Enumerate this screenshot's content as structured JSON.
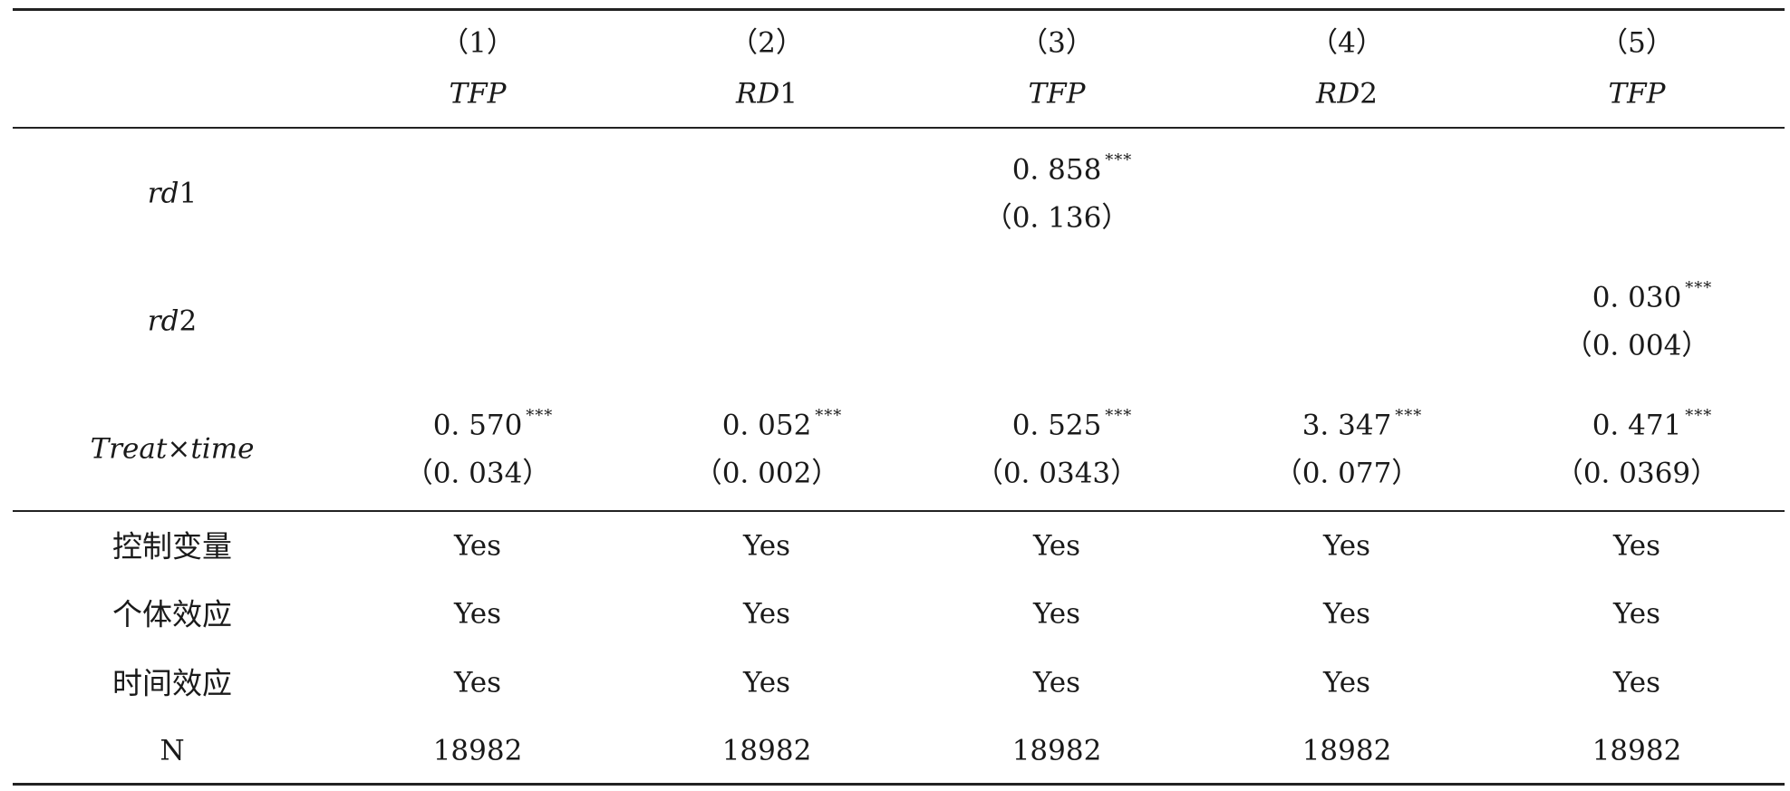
{
  "table": {
    "columns": [
      {
        "number": "（1）",
        "variable": "TFP",
        "var_suffix": ""
      },
      {
        "number": "（2）",
        "variable": "RD",
        "var_suffix": "1"
      },
      {
        "number": "（3）",
        "variable": "TFP",
        "var_suffix": ""
      },
      {
        "number": "（4）",
        "variable": "RD",
        "var_suffix": "2"
      },
      {
        "number": "（5）",
        "variable": "TFP",
        "var_suffix": ""
      }
    ],
    "rows": {
      "rd1": {
        "label_italic": "rd",
        "label_suffix": "1",
        "cells": [
          {
            "coef": "",
            "stars": "",
            "se": ""
          },
          {
            "coef": "",
            "stars": "",
            "se": ""
          },
          {
            "coef": "0. 858",
            "stars": "***",
            "se": "（0. 136）"
          },
          {
            "coef": "",
            "stars": "",
            "se": ""
          },
          {
            "coef": "",
            "stars": "",
            "se": ""
          }
        ]
      },
      "rd2": {
        "label_italic": "rd",
        "label_suffix": "2",
        "cells": [
          {
            "coef": "",
            "stars": "",
            "se": ""
          },
          {
            "coef": "",
            "stars": "",
            "se": ""
          },
          {
            "coef": "",
            "stars": "",
            "se": ""
          },
          {
            "coef": "",
            "stars": "",
            "se": ""
          },
          {
            "coef": "0. 030",
            "stars": "***",
            "se": "（0. 004）"
          }
        ]
      },
      "treat_time": {
        "label": "Treat×time",
        "cells": [
          {
            "coef": "0. 570",
            "stars": "***",
            "se": "（0. 034）"
          },
          {
            "coef": "0. 052",
            "stars": "***",
            "se": "（0. 002）"
          },
          {
            "coef": "0. 525",
            "stars": "***",
            "se": "（0. 0343）"
          },
          {
            "coef": "3. 347",
            "stars": "***",
            "se": "（0. 077）"
          },
          {
            "coef": "0. 471",
            "stars": "***",
            "se": "（0. 0369）"
          }
        ]
      },
      "controls": {
        "label": "控制变量",
        "values": [
          "Yes",
          "Yes",
          "Yes",
          "Yes",
          "Yes"
        ]
      },
      "individual_effect": {
        "label": "个体效应",
        "values": [
          "Yes",
          "Yes",
          "Yes",
          "Yes",
          "Yes"
        ]
      },
      "time_effect": {
        "label": "时间效应",
        "values": [
          "Yes",
          "Yes",
          "Yes",
          "Yes",
          "Yes"
        ]
      },
      "n": {
        "label": "N",
        "values": [
          "18982",
          "18982",
          "18982",
          "18982",
          "18982"
        ]
      }
    }
  }
}
